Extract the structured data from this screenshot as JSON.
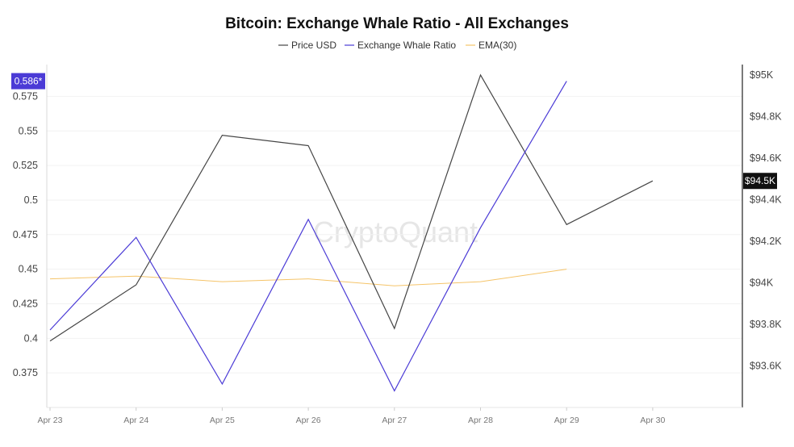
{
  "chart_data": {
    "type": "line",
    "title": "Bitcoin: Exchange Whale Ratio - All Exchanges",
    "watermark": "CryptoQuant",
    "x": [
      "Apr 23",
      "Apr 24",
      "Apr 25",
      "Apr 26",
      "Apr 27",
      "Apr 28",
      "Apr 29",
      "Apr 30"
    ],
    "series": [
      {
        "name": "Price USD",
        "axis": "right",
        "color": "#444444",
        "values": [
          93720,
          93990,
          94710,
          94660,
          93780,
          95000,
          94280,
          94490
        ]
      },
      {
        "name": "Exchange Whale Ratio",
        "axis": "left",
        "color": "#4b3bd6",
        "values": [
          0.406,
          0.473,
          0.367,
          0.486,
          0.362,
          0.48,
          0.586,
          null
        ]
      },
      {
        "name": "EMA(30)",
        "axis": "left",
        "color": "#f5c469",
        "values": [
          0.443,
          0.445,
          0.441,
          0.443,
          0.438,
          0.441,
          0.45,
          null
        ]
      }
    ],
    "y_left": {
      "ticks": [
        "0.375",
        "0.4",
        "0.425",
        "0.45",
        "0.475",
        "0.5",
        "0.525",
        "0.55",
        "0.575"
      ],
      "range": [
        0.35,
        0.598
      ]
    },
    "y_right": {
      "ticks": [
        "$93.6K",
        "$93.8K",
        "$94K",
        "$94.2K",
        "$94.4K",
        "$94.6K",
        "$94.8K",
        "$95K"
      ],
      "range": [
        93400,
        95050
      ]
    },
    "badges": {
      "left": "0.586*",
      "right": "$94.5K"
    },
    "grid": true,
    "legend_position": "top-center"
  }
}
